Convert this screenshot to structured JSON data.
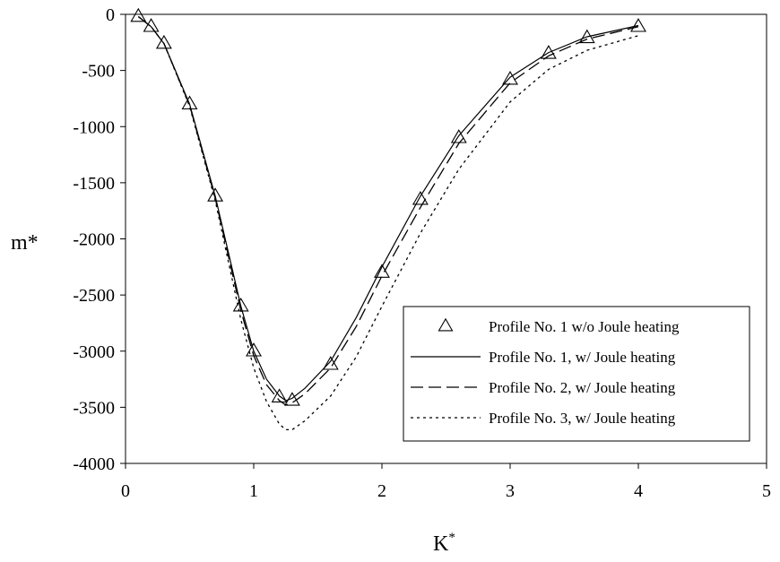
{
  "chart_data": {
    "type": "line",
    "title": "",
    "xlabel": "K",
    "xlabel_superscript": "*",
    "ylabel": "m*",
    "xlim": [
      0,
      5
    ],
    "ylim": [
      -4000,
      0
    ],
    "x_ticks": [
      0,
      1,
      2,
      3,
      4,
      5
    ],
    "y_ticks": [
      0,
      -500,
      -1000,
      -1500,
      -2000,
      -2500,
      -3000,
      -3500,
      -4000
    ],
    "grid": false,
    "legend_position": "bottom-right",
    "series": [
      {
        "name": "Profile No. 1 w/o Joule heating",
        "style": "markers-triangle",
        "x": [
          0.1,
          0.2,
          0.3,
          0.5,
          0.7,
          0.9,
          1.0,
          1.2,
          1.3,
          1.6,
          2.0,
          2.3,
          2.6,
          3.0,
          3.3,
          3.6,
          4.0
        ],
        "y": [
          -20,
          -110,
          -260,
          -800,
          -1620,
          -2600,
          -3000,
          -3410,
          -3440,
          -3120,
          -2300,
          -1650,
          -1100,
          -580,
          -350,
          -210,
          -110
        ]
      },
      {
        "name": "Profile No. 1, w/ Joule heating",
        "style": "solid",
        "x": [
          0.1,
          0.2,
          0.3,
          0.5,
          0.7,
          0.9,
          1.0,
          1.1,
          1.2,
          1.25,
          1.3,
          1.4,
          1.6,
          1.8,
          2.0,
          2.3,
          2.6,
          3.0,
          3.3,
          3.6,
          4.0
        ],
        "y": [
          -20,
          -110,
          -260,
          -800,
          -1620,
          -2600,
          -3000,
          -3250,
          -3400,
          -3440,
          -3420,
          -3330,
          -3090,
          -2700,
          -2250,
          -1620,
          -1080,
          -560,
          -340,
          -200,
          -100
        ]
      },
      {
        "name": "Profile No. 2, w/ Joule heating",
        "style": "dashed",
        "x": [
          0.1,
          0.2,
          0.3,
          0.5,
          0.7,
          0.9,
          1.0,
          1.1,
          1.2,
          1.25,
          1.3,
          1.4,
          1.6,
          1.8,
          2.0,
          2.3,
          2.6,
          3.0,
          3.3,
          3.6,
          4.0
        ],
        "y": [
          -20,
          -110,
          -260,
          -810,
          -1640,
          -2640,
          -3040,
          -3300,
          -3440,
          -3480,
          -3460,
          -3380,
          -3150,
          -2780,
          -2330,
          -1720,
          -1150,
          -610,
          -370,
          -220,
          -110
        ]
      },
      {
        "name": "Profile No. 3, w/ Joule heating",
        "style": "dotted",
        "x": [
          0.1,
          0.2,
          0.3,
          0.5,
          0.7,
          0.9,
          1.0,
          1.1,
          1.2,
          1.25,
          1.3,
          1.4,
          1.6,
          1.8,
          2.0,
          2.3,
          2.6,
          3.0,
          3.3,
          3.6,
          4.0
        ],
        "y": [
          -20,
          -110,
          -260,
          -820,
          -1660,
          -2720,
          -3150,
          -3450,
          -3650,
          -3700,
          -3700,
          -3620,
          -3400,
          -3050,
          -2600,
          -1950,
          -1380,
          -780,
          -490,
          -320,
          -190
        ]
      }
    ]
  }
}
